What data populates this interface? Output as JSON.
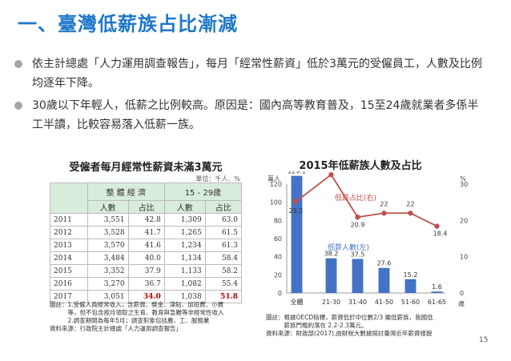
{
  "title": "一、臺灣低薪族占比漸減",
  "bullets": [
    "依主計總處「人力運用調查報告」，每月「經常性薪資」低於3萬元的受僱員工，人數及比例均逐年下降。",
    "30歲以下年輕人，低薪之比例較高。原因是：國內高等教育普及，15至24歲就業者多係半工半讀，比較容易落入低薪一族。"
  ],
  "table": {
    "title": "受僱者每月經常性薪資未滿3萬元",
    "unit": "單位：千人．%",
    "group_headers": [
      "整 體 經 濟",
      "15 - 29歲"
    ],
    "sub_headers": [
      "人數",
      "占比",
      "人數",
      "占比"
    ],
    "rows": [
      {
        "year": "2011",
        "cells": [
          "3,551",
          "42.8",
          "1,309",
          "63.0"
        ]
      },
      {
        "year": "2012",
        "cells": [
          "3,528",
          "41.7",
          "1,265",
          "61.5"
        ]
      },
      {
        "year": "2013",
        "cells": [
          "3,570",
          "41.6",
          "1,234",
          "61.3"
        ]
      },
      {
        "year": "2014",
        "cells": [
          "3,484",
          "40.0",
          "1,134",
          "58.4"
        ]
      },
      {
        "year": "2015",
        "cells": [
          "3,352",
          "37.9",
          "1,133",
          "58.2"
        ]
      },
      {
        "year": "2016",
        "cells": [
          "3,270",
          "36.7",
          "1,082",
          "55.4"
        ]
      },
      {
        "year": "2017",
        "cells": [
          "3,051",
          "34.0",
          "1,038",
          "51.8"
        ]
      }
    ],
    "note_lines": [
      "圖註：1.受僱人員經常收入，含薪資、獎金、津貼、加班費、小費",
      "　　　等，但不包含按月領取之生育、教育與急難等非經常性收入",
      "　　　2.調查期間為每年5月；調查對象包括農、工、服務業",
      "資料來源：行政院主計總處「人力運用調查報告」"
    ]
  },
  "chart_data": {
    "type": "bar",
    "title": "2015年低薪族人數及占比",
    "categories": [
      "全體",
      "21-30",
      "31-40",
      "41-50",
      "51-60",
      "61-65"
    ],
    "series": [
      {
        "name": "低薪人數(左)",
        "type": "bar",
        "axis": "left",
        "values": [
          129.1,
          38.2,
          37.5,
          27.6,
          15.2,
          1.6
        ],
        "color": "#4472c4"
      },
      {
        "name": "低薪占比(右)",
        "type": "line",
        "axis": "right",
        "values": [
          25.2,
          32.6,
          20.9,
          22,
          22,
          18.4
        ],
        "color": "#c0504d"
      }
    ],
    "y_left": {
      "label": "萬人",
      "min": 0,
      "max": 120,
      "ticks": [
        0,
        20,
        40,
        60,
        80,
        100,
        120
      ]
    },
    "y_right": {
      "label": "%",
      "min": 0,
      "max": 30,
      "ticks": [
        0,
        10,
        20,
        30
      ]
    },
    "x_unit": "歲",
    "labels": {
      "bars": [
        "129.1",
        "38.2",
        "37.5",
        "27.6",
        "15.2",
        "1.6"
      ],
      "line": [
        "25.2",
        "32.6",
        "20.9",
        "22",
        "22",
        "18.4"
      ]
    },
    "note_lines": [
      "圖註：根據OECD指標，薪資低於中位數2/3 屬低薪族，我國低",
      "　　　薪族門檻約落在 2.2-2.3萬元。",
      "資料來源：財政部(2017),由財稅大數據探討臺灣近年薪資樣貌"
    ]
  },
  "page_number": "15"
}
